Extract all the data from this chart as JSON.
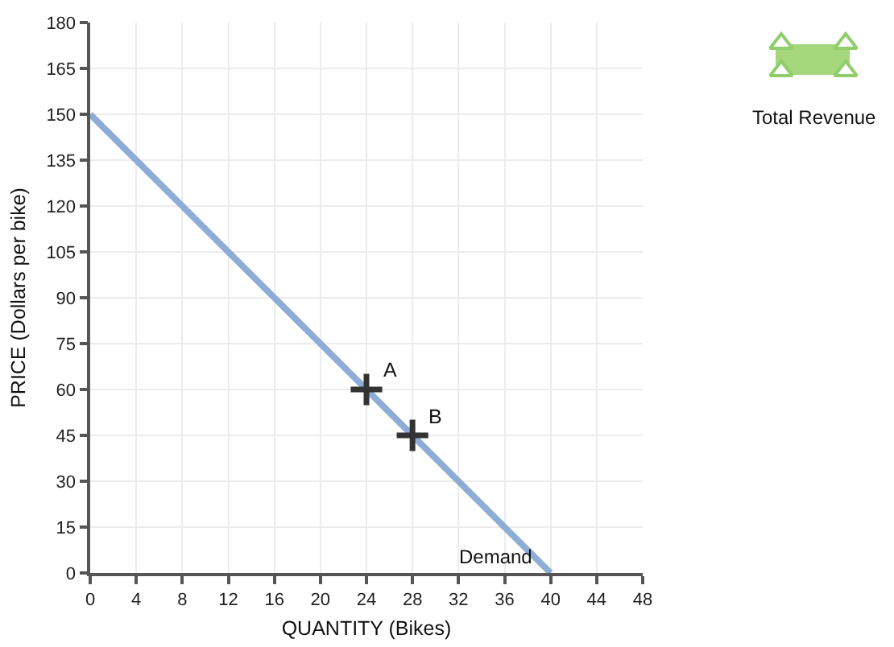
{
  "chart_data": {
    "type": "line",
    "xlabel": "QUANTITY (Bikes)",
    "ylabel": "PRICE (Dollars per bike)",
    "xlim": [
      0,
      48
    ],
    "xticks": [
      0,
      4,
      8,
      12,
      16,
      20,
      24,
      28,
      32,
      36,
      40,
      44,
      48
    ],
    "ylim": [
      0,
      180
    ],
    "yticks": [
      0,
      15,
      30,
      45,
      60,
      75,
      90,
      105,
      120,
      135,
      150,
      165,
      180
    ],
    "grid": true,
    "series": [
      {
        "name": "Demand",
        "color": "#8eadd6",
        "x": [
          0,
          40
        ],
        "values": [
          150,
          0
        ]
      },
      {
        "type": "scatter",
        "color": "#333333",
        "marker": "cross",
        "x": [
          24,
          28
        ],
        "values": [
          60,
          45
        ]
      }
    ],
    "annotations": [
      {
        "text": "A",
        "x": 24,
        "y": 60
      },
      {
        "text": "B",
        "x": 28,
        "y": 45
      },
      "Total Revenue"
    ]
  }
}
